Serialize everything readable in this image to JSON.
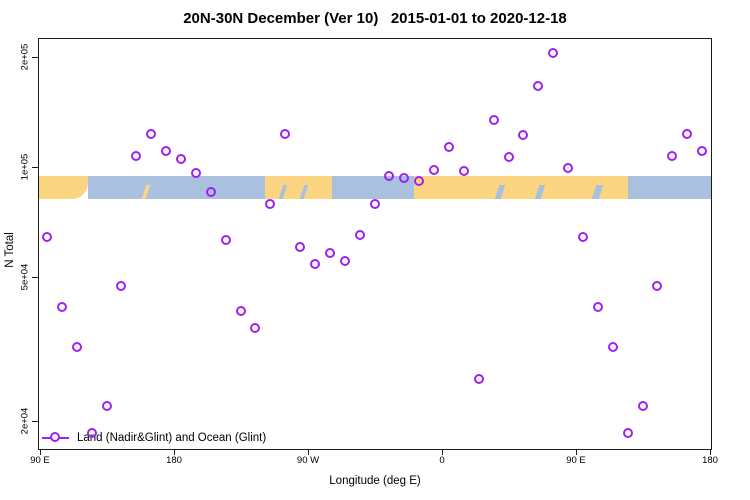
{
  "chart_data": {
    "type": "scatter",
    "title": "20N-30N December (Ver 10)   2015-01-01 to 2020-12-18",
    "xlabel": "Longitude (deg E)",
    "ylabel": "N Total",
    "yscale": "log",
    "xlim": [
      89,
      541
    ],
    "ylim": [
      16700,
      226000
    ],
    "grid": "off",
    "x_ticks": [
      {
        "v": 90,
        "label": "90 E"
      },
      {
        "v": 180,
        "label": "180"
      },
      {
        "v": 270,
        "label": "90 W"
      },
      {
        "v": 360,
        "label": "0"
      },
      {
        "v": 450,
        "label": "90 E"
      },
      {
        "v": 540,
        "label": "180"
      }
    ],
    "y_ticks": [
      {
        "v": 20000,
        "label": "2e+04"
      },
      {
        "v": 50000,
        "label": "5e+04"
      },
      {
        "v": 100000,
        "label": "1e+05"
      },
      {
        "v": 200000,
        "label": "2e+05"
      }
    ],
    "legend": {
      "label": "Land (Nadir&Glint) and Ocean (Glint)",
      "position": "bottom-left",
      "marker": "line-with-open-circle"
    },
    "series": [
      {
        "name": "Land (Nadir&Glint) and Ocean (Glint)",
        "marker": "open-circle",
        "color": "#a020f0",
        "points": [
          [
            95,
            64000
          ],
          [
            105,
            41000
          ],
          [
            115,
            32000
          ],
          [
            125,
            18500
          ],
          [
            135,
            22000
          ],
          [
            145,
            47000
          ],
          [
            155,
            107000
          ],
          [
            165,
            123000
          ],
          [
            175,
            110000
          ],
          [
            185,
            105000
          ],
          [
            195,
            96000
          ],
          [
            205,
            85000
          ],
          [
            215,
            63000
          ],
          [
            225,
            40000
          ],
          [
            235,
            36000
          ],
          [
            245,
            79000
          ],
          [
            255,
            123000
          ],
          [
            265,
            60000
          ],
          [
            275,
            54000
          ],
          [
            285,
            58000
          ],
          [
            295,
            55000
          ],
          [
            305,
            65000
          ],
          [
            315,
            79000
          ],
          [
            325,
            94000
          ],
          [
            335,
            93000
          ],
          [
            345,
            91000
          ],
          [
            355,
            98000
          ],
          [
            365,
            113000
          ],
          [
            375,
            97000
          ],
          [
            385,
            26000
          ],
          [
            395,
            134000
          ],
          [
            405,
            106000
          ],
          [
            415,
            122000
          ],
          [
            425,
            166000
          ],
          [
            435,
            205000
          ],
          [
            445,
            99000
          ],
          [
            455,
            64000
          ],
          [
            465,
            41000
          ],
          [
            475,
            32000
          ],
          [
            485,
            18500
          ],
          [
            495,
            22000
          ],
          [
            505,
            47000
          ],
          [
            515,
            107000
          ],
          [
            525,
            123000
          ],
          [
            535,
            110000
          ]
        ]
      }
    ],
    "map_band": {
      "description": "20N-30N latitude strip map: land vs ocean",
      "value_at": 90000,
      "segments": [
        {
          "type": "land",
          "from": 89,
          "to": 122,
          "round": "br"
        },
        {
          "type": "ocean",
          "from": 122,
          "to": 241
        },
        {
          "type": "land",
          "from": 241,
          "to": 286
        },
        {
          "type": "ocean",
          "from": 286,
          "to": 341
        },
        {
          "type": "land",
          "from": 341,
          "to": 485
        },
        {
          "type": "ocean",
          "from": 485,
          "to": 541
        }
      ],
      "slivers": [
        {
          "type": "land",
          "from": 160,
          "to": 163
        },
        {
          "type": "ocean",
          "from": 252,
          "to": 255
        },
        {
          "type": "ocean",
          "from": 266,
          "to": 269
        },
        {
          "type": "ocean",
          "from": 397,
          "to": 401
        },
        {
          "type": "ocean",
          "from": 424,
          "to": 428
        },
        {
          "type": "ocean",
          "from": 462,
          "to": 467
        }
      ]
    },
    "colors": {
      "point": "#a020f0",
      "land": "#fbd582",
      "ocean": "#a9c0de",
      "axis": "#1a1a1a"
    }
  }
}
